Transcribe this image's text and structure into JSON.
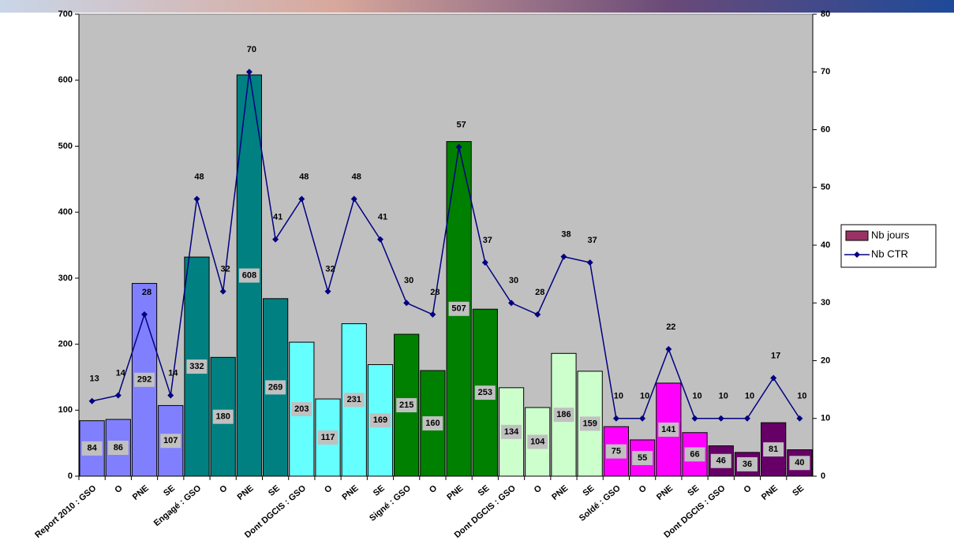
{
  "chart_data": {
    "type": "bar",
    "categories": [
      "Report 2010 : GSO",
      "O",
      "PNE",
      "SE",
      "Engagé : GSO",
      "O",
      "PNE",
      "SE",
      "Dont DGCIS : GSO",
      "O",
      "PNE",
      "SE",
      "Signé : GSO",
      "O",
      "PNE",
      "SE",
      "Dont DGCIS : GSO",
      "O",
      "PNE",
      "SE",
      "Soldé : GSO",
      "O",
      "PNE",
      "SE",
      "Dont DGCIS : GSO",
      "O",
      "PNE",
      "SE"
    ],
    "series": [
      {
        "name": "Nb jours",
        "type": "bar",
        "color": "#993366",
        "colors": [
          "#8080ff",
          "#8080ff",
          "#8080ff",
          "#8080ff",
          "#008080",
          "#008080",
          "#008080",
          "#008080",
          "#66ffff",
          "#66ffff",
          "#66ffff",
          "#66ffff",
          "#008000",
          "#008000",
          "#008000",
          "#008000",
          "#ccffcc",
          "#ccffcc",
          "#ccffcc",
          "#ccffcc",
          "#ff00ff",
          "#ff00ff",
          "#ff00ff",
          "#ff00ff",
          "#660066",
          "#660066",
          "#660066",
          "#660066"
        ],
        "values": [
          84,
          86,
          292,
          107,
          332,
          180,
          608,
          269,
          203,
          117,
          231,
          169,
          215,
          160,
          507,
          253,
          134,
          104,
          186,
          159,
          75,
          55,
          141,
          66,
          46,
          36,
          81,
          40
        ]
      },
      {
        "name": "Nb CTR",
        "type": "line",
        "axis": "y2",
        "color": "#000080",
        "values": [
          13,
          14,
          28,
          14,
          48,
          32,
          70,
          41,
          48,
          32,
          48,
          41,
          30,
          28,
          57,
          37,
          30,
          28,
          38,
          37,
          10,
          10,
          22,
          10,
          10,
          10,
          17,
          10
        ]
      }
    ],
    "ylim": [
      0,
      700
    ],
    "yticks": [
      0,
      100,
      200,
      300,
      400,
      500,
      600,
      700
    ],
    "y2lim": [
      0,
      80
    ],
    "y2ticks": [
      0,
      10,
      20,
      30,
      40,
      50,
      60,
      70,
      80
    ],
    "legend": "right"
  }
}
